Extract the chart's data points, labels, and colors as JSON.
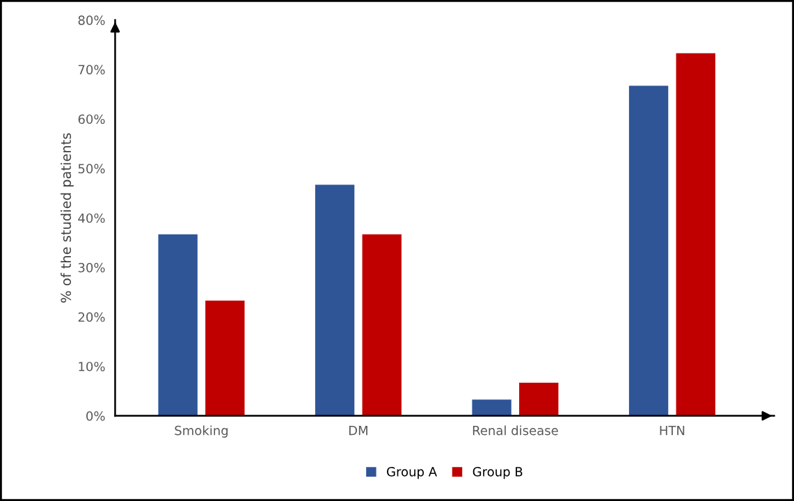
{
  "chart_data": {
    "type": "bar",
    "ylabel": "% of the studied patients",
    "categories": [
      "Smoking",
      "DM",
      "Renal disease",
      "HTN"
    ],
    "series": [
      {
        "name": "Group A",
        "color": "#2f5597",
        "values": [
          36.7,
          46.7,
          3.3,
          66.7
        ]
      },
      {
        "name": "Group B",
        "color": "#c00000",
        "values": [
          23.3,
          36.7,
          6.7,
          73.3
        ]
      }
    ],
    "ylim": [
      0,
      80
    ],
    "yticks": [
      {
        "value": 0,
        "label": "0%"
      },
      {
        "value": 10,
        "label": "10%"
      },
      {
        "value": 20,
        "label": "20%"
      },
      {
        "value": 30,
        "label": "30%"
      },
      {
        "value": 40,
        "label": "40%"
      },
      {
        "value": 50,
        "label": "50%"
      },
      {
        "value": 60,
        "label": "60%"
      },
      {
        "value": 70,
        "label": "70%"
      },
      {
        "value": 80,
        "label": "80%"
      }
    ],
    "grid": false,
    "legend": "bottom"
  }
}
